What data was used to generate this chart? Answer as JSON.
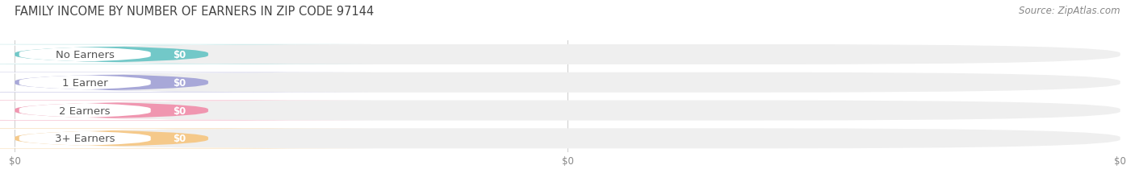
{
  "title": "FAMILY INCOME BY NUMBER OF EARNERS IN ZIP CODE 97144",
  "source": "Source: ZipAtlas.com",
  "categories": [
    "No Earners",
    "1 Earner",
    "2 Earners",
    "3+ Earners"
  ],
  "values": [
    0,
    0,
    0,
    0
  ],
  "bar_colors": [
    "#72c8c8",
    "#a8a8d8",
    "#f096b0",
    "#f5c98a"
  ],
  "bar_bg_color": "#efefef",
  "value_label": "$0",
  "title_fontsize": 10.5,
  "source_fontsize": 8.5,
  "label_fontsize": 9.5,
  "value_fontsize": 8.5,
  "tick_fontsize": 8.5,
  "background_color": "#ffffff",
  "xtick_labels": [
    "$0",
    "$0",
    "$0"
  ],
  "xtick_positions": [
    0.0,
    0.5,
    1.0
  ]
}
